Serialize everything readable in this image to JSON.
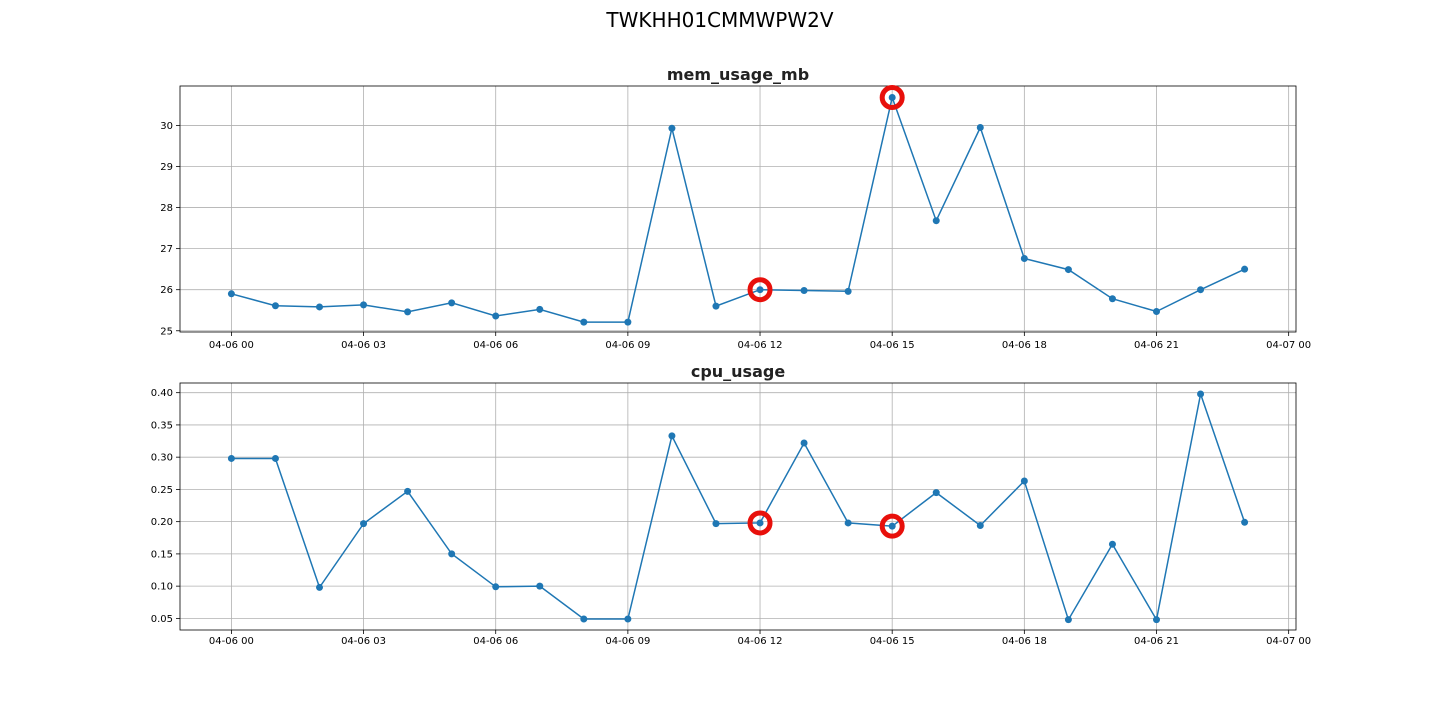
{
  "suptitle": "TWKHH01CMMWPW2V",
  "colors": {
    "series": "#1f77b4",
    "anomaly": "#e8100b",
    "grid": "#b0b0b0"
  },
  "chart_data": [
    {
      "type": "line",
      "title": "mem_usage_mb",
      "xlabel": "",
      "ylabel": "",
      "grid": true,
      "x": [
        "04-06 00:00",
        "04-06 01:00",
        "04-06 02:00",
        "04-06 03:00",
        "04-06 04:00",
        "04-06 05:00",
        "04-06 06:00",
        "04-06 07:00",
        "04-06 08:00",
        "04-06 09:00",
        "04-06 10:00",
        "04-06 11:00",
        "04-06 12:00",
        "04-06 13:00",
        "04-06 14:00",
        "04-06 15:00",
        "04-06 16:00",
        "04-06 17:00",
        "04-06 18:00",
        "04-06 19:00",
        "04-06 20:00",
        "04-06 21:00",
        "04-06 22:00",
        "04-06 23:00"
      ],
      "values": [
        25.9,
        25.61,
        25.58,
        25.63,
        25.46,
        25.68,
        25.36,
        25.52,
        25.21,
        25.21,
        29.93,
        25.6,
        26.0,
        25.98,
        25.96,
        30.68,
        27.68,
        29.95,
        26.76,
        26.49,
        25.78,
        25.47,
        26.0,
        26.5
      ],
      "anomalies": [
        "04-06 12:00",
        "04-06 15:00"
      ],
      "xlim": [
        "04-05 22:50",
        "04-07 00:10"
      ],
      "ylim": [
        24.97,
        30.96
      ],
      "xticks": [
        "04-06 00",
        "04-06 03",
        "04-06 06",
        "04-06 09",
        "04-06 12",
        "04-06 15",
        "04-06 18",
        "04-06 21",
        "04-07 00"
      ],
      "yticks": [
        "25",
        "26",
        "27",
        "28",
        "29",
        "30"
      ]
    },
    {
      "type": "line",
      "title": "cpu_usage",
      "xlabel": "",
      "ylabel": "",
      "grid": true,
      "x": [
        "04-06 00:00",
        "04-06 01:00",
        "04-06 02:00",
        "04-06 03:00",
        "04-06 04:00",
        "04-06 05:00",
        "04-06 06:00",
        "04-06 07:00",
        "04-06 08:00",
        "04-06 09:00",
        "04-06 10:00",
        "04-06 11:00",
        "04-06 12:00",
        "04-06 13:00",
        "04-06 14:00",
        "04-06 15:00",
        "04-06 16:00",
        "04-06 17:00",
        "04-06 18:00",
        "04-06 19:00",
        "04-06 20:00",
        "04-06 21:00",
        "04-06 22:00",
        "04-06 23:00"
      ],
      "values": [
        0.298,
        0.298,
        0.098,
        0.197,
        0.247,
        0.15,
        0.099,
        0.1,
        0.049,
        0.049,
        0.333,
        0.197,
        0.198,
        0.322,
        0.198,
        0.193,
        0.245,
        0.194,
        0.263,
        0.048,
        0.165,
        0.048,
        0.398,
        0.199
      ],
      "anomalies": [
        "04-06 12:00",
        "04-06 15:00"
      ],
      "xlim": [
        "04-05 22:50",
        "04-07 00:10"
      ],
      "ylim": [
        0.032,
        0.415
      ],
      "xticks": [
        "04-06 00",
        "04-06 03",
        "04-06 06",
        "04-06 09",
        "04-06 12",
        "04-06 15",
        "04-06 18",
        "04-06 21",
        "04-07 00"
      ],
      "yticks": [
        "0.05",
        "0.10",
        "0.15",
        "0.20",
        "0.25",
        "0.30",
        "0.35",
        "0.40"
      ]
    }
  ]
}
